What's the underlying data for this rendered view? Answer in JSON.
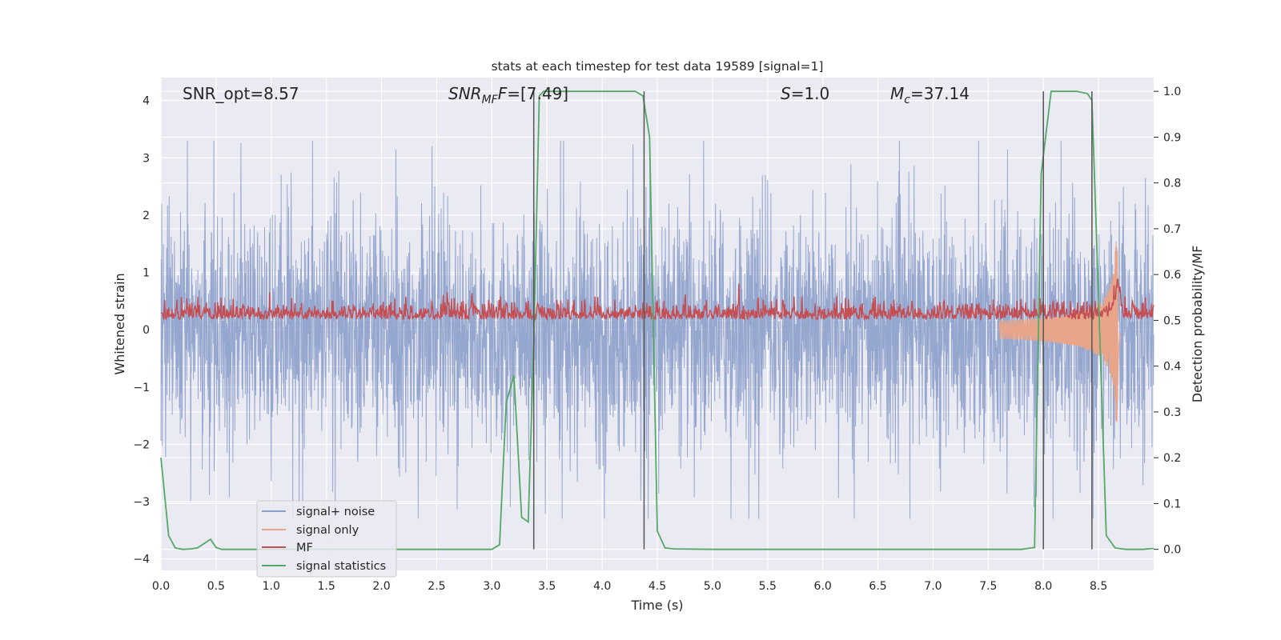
{
  "chart_data": {
    "type": "line",
    "title": "stats at each timestep for test data 19589 [signal=1]",
    "xlabel": "Time (s)",
    "ylabel": "Whitened strain",
    "ylabel_right": "Detection probability/MF",
    "xlim": [
      0.0,
      9.0
    ],
    "ylim": [
      -4.2,
      4.4
    ],
    "ylim_right": [
      -0.046,
      1.03
    ],
    "x_ticks": [
      "0.0",
      "0.5",
      "1.0",
      "1.5",
      "2.0",
      "2.5",
      "3.0",
      "3.5",
      "4.0",
      "4.5",
      "5.0",
      "5.5",
      "6.0",
      "6.5",
      "7.0",
      "7.5",
      "8.0",
      "8.5"
    ],
    "y_ticks": [
      "-4",
      "-3",
      "-2",
      "-1",
      "0",
      "1",
      "2",
      "3",
      "4"
    ],
    "y_ticks_right": [
      "0.0",
      "0.1",
      "0.2",
      "0.3",
      "0.4",
      "0.5",
      "0.6",
      "0.7",
      "0.8",
      "0.9",
      "1.0"
    ],
    "grid": true,
    "legend_position": "lower-left",
    "annotations": {
      "snr_opt": "SNR_opt=8.57",
      "snr_mf_name": "SNR",
      "snr_mf_sub": "MF",
      "snr_mf_italic": "F",
      "snr_mf_value": "=[7.49]",
      "s_name": "S",
      "s_value": "=1.0",
      "mc_name": "M",
      "mc_sub": "c",
      "mc_value": "=37.14"
    },
    "vertical_lines": [
      3.38,
      4.38,
      8.0,
      8.44
    ],
    "series": [
      {
        "name": "signal+ noise",
        "color": "#8da0cb",
        "axis": "left",
        "envelope": {
          "x": [
            0.0,
            9.0
          ],
          "max_approx": 3.3,
          "min_approx": -3.3
        }
      },
      {
        "name": "signal only",
        "color": "#e8a58a",
        "axis": "left",
        "chirp": {
          "start": 7.6,
          "peak_time": 8.67,
          "peak_amp": 1.9,
          "min_amp": -2.0
        }
      },
      {
        "name": "MF",
        "color": "#c44e52",
        "axis": "right",
        "baseline": 0.51,
        "peak": {
          "x": 8.67,
          "y": 0.6
        }
      },
      {
        "name": "signal statistics",
        "color": "#55a868",
        "axis": "right",
        "x": [
          0.0,
          0.07,
          0.13,
          0.2,
          0.27,
          0.33,
          0.4,
          0.45,
          0.5,
          0.55,
          0.6,
          0.7,
          0.8,
          1.0,
          1.5,
          2.0,
          2.5,
          2.8,
          3.0,
          3.07,
          3.13,
          3.2,
          3.27,
          3.33,
          3.38,
          3.43,
          3.47,
          3.55,
          4.0,
          4.3,
          4.37,
          4.43,
          4.5,
          4.57,
          4.65,
          5.0,
          6.0,
          7.0,
          7.8,
          7.92,
          7.98,
          8.07,
          8.3,
          8.4,
          8.44,
          8.5,
          8.57,
          8.65,
          8.75,
          8.9,
          9.0
        ],
        "y": [
          0.2,
          0.03,
          0.003,
          0.0,
          0.001,
          0.003,
          0.014,
          0.022,
          0.004,
          0.0,
          0.0,
          0.0,
          0.0,
          0.0,
          0.0,
          0.0,
          0.0,
          0.0,
          0.0,
          0.01,
          0.32,
          0.38,
          0.07,
          0.06,
          0.45,
          0.99,
          1.0,
          1.0,
          1.0,
          1.0,
          0.99,
          0.9,
          0.04,
          0.003,
          0.001,
          0.0,
          0.0,
          0.0,
          0.0,
          0.004,
          0.82,
          1.0,
          1.0,
          0.995,
          0.98,
          0.55,
          0.03,
          0.003,
          0.0,
          0.0,
          0.002
        ]
      }
    ]
  }
}
